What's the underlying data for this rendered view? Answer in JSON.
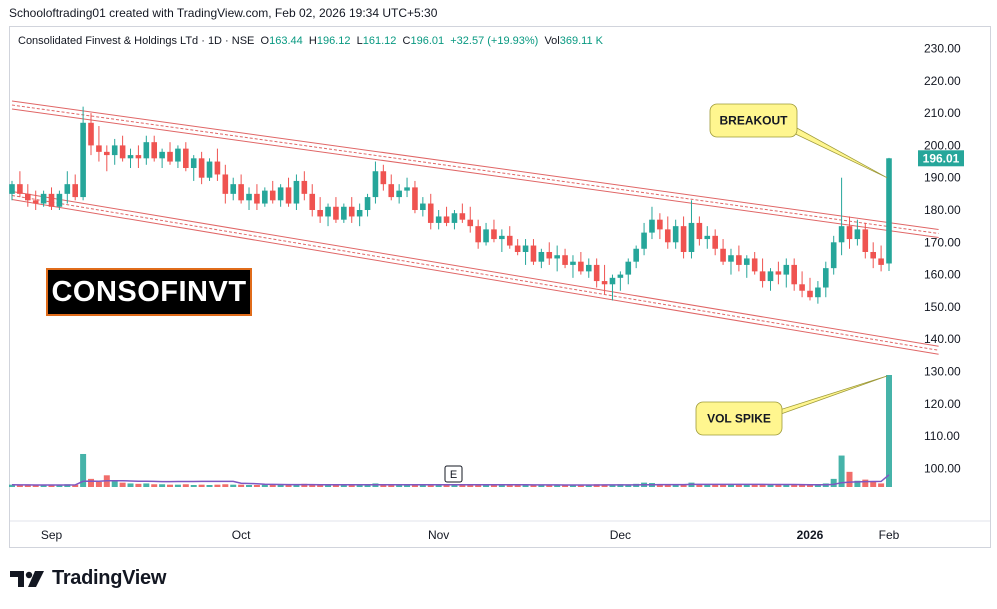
{
  "attribution": "Schooloftrading01 created with TradingView.com, Feb 02, 2026 19:34 UTC+5:30",
  "legend": {
    "symbol": "Consolidated Finvest & Holdings LTd · 1D · NSE",
    "o_label": "O",
    "o_value": "163.44",
    "h_label": "H",
    "h_value": "196.12",
    "l_label": "L",
    "l_value": "161.12",
    "c_label": "C",
    "c_value": "196.01",
    "change": "+32.57 (+19.93%)",
    "vol_label": "Vol",
    "vol_value": "369.11 K"
  },
  "ticker_label": "CONSOFINVT",
  "last_price_label": "196.01",
  "earnings_marker": "E",
  "brand": "TradingView",
  "colors": {
    "up": "#26a69a",
    "down": "#ef5350",
    "channel": "#e06666",
    "callout": "#fff68f",
    "avg_volume": "#7e57c2"
  },
  "chart_data": {
    "type": "candlestick",
    "y_axis_ticks": [
      "230.00",
      "220.00",
      "210.00",
      "200.00",
      "190.00",
      "180.00",
      "170.00",
      "160.00",
      "150.00",
      "140.00",
      "130.00",
      "120.00",
      "110.00",
      "100.00"
    ],
    "y_axis_values": [
      230,
      220,
      210,
      200,
      190,
      180,
      170,
      160,
      150,
      140,
      130,
      120,
      110,
      100
    ],
    "x_axis_labels": [
      "Sep",
      "Oct",
      "Nov",
      "Dec",
      "2026",
      "Feb"
    ],
    "candles": [
      [
        185,
        189,
        183,
        188
      ],
      [
        188,
        192,
        184,
        185
      ],
      [
        185,
        188,
        181,
        183
      ],
      [
        183,
        186,
        180,
        182
      ],
      [
        182,
        186,
        181,
        185
      ],
      [
        185,
        187,
        180,
        181
      ],
      [
        181,
        186,
        180,
        185
      ],
      [
        185,
        192,
        182,
        188
      ],
      [
        188,
        191,
        183,
        184
      ],
      [
        184,
        212,
        183,
        207
      ],
      [
        207,
        210,
        197,
        200
      ],
      [
        200,
        206,
        195,
        198
      ],
      [
        198,
        200,
        192,
        197
      ],
      [
        197,
        202,
        194,
        200
      ],
      [
        200,
        203,
        195,
        196
      ],
      [
        196,
        199,
        193,
        197
      ],
      [
        197,
        200,
        193,
        196
      ],
      [
        196,
        203,
        194,
        201
      ],
      [
        201,
        203,
        195,
        196
      ],
      [
        196,
        199,
        193,
        198
      ],
      [
        198,
        201,
        194,
        195
      ],
      [
        195,
        200,
        193,
        199
      ],
      [
        199,
        201,
        192,
        193
      ],
      [
        193,
        197,
        189,
        196
      ],
      [
        196,
        198,
        188,
        190
      ],
      [
        190,
        196,
        189,
        195
      ],
      [
        195,
        199,
        189,
        191
      ],
      [
        191,
        194,
        182,
        185
      ],
      [
        185,
        190,
        183,
        188
      ],
      [
        188,
        191,
        182,
        183
      ],
      [
        183,
        187,
        180,
        185
      ],
      [
        185,
        188,
        180,
        182
      ],
      [
        182,
        187,
        181,
        186
      ],
      [
        186,
        189,
        182,
        183
      ],
      [
        183,
        188,
        181,
        187
      ],
      [
        187,
        190,
        181,
        182
      ],
      [
        182,
        191,
        180,
        189
      ],
      [
        189,
        192,
        183,
        185
      ],
      [
        185,
        188,
        178,
        180
      ],
      [
        180,
        184,
        176,
        178
      ],
      [
        178,
        182,
        175,
        181
      ],
      [
        181,
        184,
        176,
        177
      ],
      [
        177,
        182,
        176,
        181
      ],
      [
        181,
        184,
        176,
        178
      ],
      [
        178,
        182,
        175,
        180
      ],
      [
        180,
        185,
        178,
        184
      ],
      [
        184,
        195,
        182,
        192
      ],
      [
        192,
        194,
        186,
        188
      ],
      [
        188,
        191,
        183,
        184
      ],
      [
        184,
        188,
        182,
        186
      ],
      [
        186,
        190,
        184,
        187
      ],
      [
        187,
        189,
        179,
        180
      ],
      [
        180,
        184,
        178,
        182
      ],
      [
        182,
        185,
        174,
        176
      ],
      [
        176,
        180,
        174,
        178
      ],
      [
        178,
        181,
        175,
        176
      ],
      [
        176,
        180,
        174,
        179
      ],
      [
        179,
        182,
        176,
        177
      ],
      [
        177,
        181,
        173,
        175
      ],
      [
        175,
        177,
        168,
        170
      ],
      [
        170,
        176,
        169,
        174
      ],
      [
        174,
        177,
        170,
        171
      ],
      [
        171,
        174,
        167,
        172
      ],
      [
        172,
        175,
        168,
        169
      ],
      [
        169,
        171,
        166,
        167
      ],
      [
        167,
        171,
        163,
        169
      ],
      [
        169,
        171,
        163,
        164
      ],
      [
        164,
        168,
        162,
        167
      ],
      [
        167,
        170,
        163,
        165
      ],
      [
        165,
        169,
        161,
        166
      ],
      [
        166,
        168,
        162,
        163
      ],
      [
        163,
        166,
        159,
        164
      ],
      [
        164,
        167,
        160,
        161
      ],
      [
        161,
        165,
        159,
        163
      ],
      [
        163,
        165,
        156,
        158
      ],
      [
        158,
        163,
        154,
        157
      ],
      [
        157,
        160,
        152,
        159
      ],
      [
        159,
        161,
        155,
        160
      ],
      [
        160,
        165,
        157,
        164
      ],
      [
        164,
        169,
        162,
        168
      ],
      [
        168,
        176,
        166,
        173
      ],
      [
        173,
        181,
        171,
        177
      ],
      [
        177,
        179,
        171,
        174
      ],
      [
        174,
        178,
        168,
        170
      ],
      [
        170,
        177,
        168,
        175
      ],
      [
        175,
        178,
        165,
        167
      ],
      [
        167,
        183,
        165,
        176
      ],
      [
        176,
        178,
        169,
        171
      ],
      [
        171,
        175,
        168,
        172
      ],
      [
        172,
        174,
        166,
        168
      ],
      [
        168,
        171,
        163,
        164
      ],
      [
        164,
        168,
        160,
        166
      ],
      [
        166,
        169,
        161,
        163
      ],
      [
        163,
        166,
        159,
        165
      ],
      [
        165,
        167,
        160,
        161
      ],
      [
        161,
        165,
        156,
        158
      ],
      [
        158,
        162,
        155,
        161
      ],
      [
        161,
        164,
        157,
        160
      ],
      [
        160,
        165,
        156,
        163
      ],
      [
        163,
        165,
        155,
        157
      ],
      [
        157,
        161,
        153,
        155
      ],
      [
        155,
        159,
        152,
        153
      ],
      [
        153,
        158,
        151,
        156
      ],
      [
        156,
        164,
        153,
        162
      ],
      [
        162,
        172,
        160,
        170
      ],
      [
        170,
        190,
        166,
        175
      ],
      [
        175,
        178,
        168,
        171
      ],
      [
        171,
        177,
        169,
        174
      ],
      [
        174,
        176,
        165,
        167
      ],
      [
        167,
        170,
        162,
        165
      ],
      [
        165,
        169,
        161,
        163
      ],
      [
        163.44,
        196.12,
        161.12,
        196.01
      ]
    ],
    "volume_k": [
      5,
      4,
      4,
      3,
      3,
      4,
      5,
      6,
      5,
      95,
      20,
      12,
      30,
      15,
      10,
      8,
      7,
      8,
      6,
      6,
      5,
      5,
      6,
      4,
      5,
      4,
      5,
      6,
      5,
      5,
      4,
      4,
      5,
      5,
      4,
      6,
      5,
      7,
      5,
      4,
      3,
      4,
      5,
      4,
      5,
      6,
      8,
      6,
      5,
      4,
      4,
      5,
      4,
      6,
      4,
      3,
      5,
      4,
      5,
      6,
      4,
      5,
      3,
      4,
      4,
      5,
      3,
      4,
      5,
      4,
      3,
      4,
      5,
      4,
      6,
      5,
      4,
      6,
      5,
      7,
      10,
      9,
      6,
      5,
      4,
      6,
      10,
      5,
      4,
      5,
      5,
      4,
      3,
      4,
      5,
      4,
      3,
      5,
      4,
      6,
      5,
      4,
      5,
      8,
      20,
      90,
      40,
      15,
      18,
      12,
      8,
      369.11
    ],
    "channel_upper": {
      "start": [
        0,
        212.5
      ],
      "end": [
        115,
        173.5
      ]
    },
    "channel_lower": {
      "start": [
        0,
        184.5
      ],
      "end": [
        115,
        137.5
      ]
    },
    "annotations": [
      {
        "text": "BREAKOUT",
        "target": "last candle close"
      },
      {
        "text": "VOL SPIKE",
        "target": "last volume bar"
      }
    ]
  }
}
